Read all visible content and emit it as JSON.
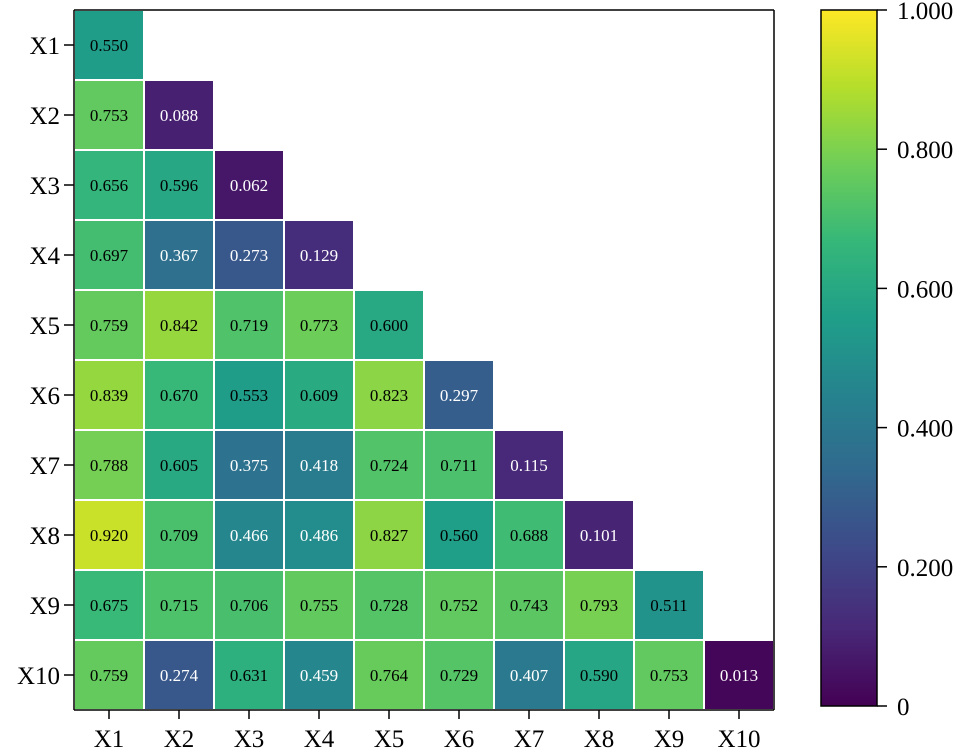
{
  "chart_data": {
    "type": "heatmap",
    "title": "",
    "xlabel": "",
    "ylabel": "",
    "x_categories": [
      "X1",
      "X2",
      "X3",
      "X4",
      "X5",
      "X6",
      "X7",
      "X8",
      "X9",
      "X10"
    ],
    "y_categories": [
      "X1",
      "X2",
      "X3",
      "X4",
      "X5",
      "X6",
      "X7",
      "X8",
      "X9",
      "X10"
    ],
    "cells": [
      [
        "0.550"
      ],
      [
        "0.753",
        "0.088"
      ],
      [
        "0.656",
        "0.596",
        "0.062"
      ],
      [
        "0.697",
        "0.367",
        "0.273",
        "0.129"
      ],
      [
        "0.759",
        "0.842",
        "0.719",
        "0.773",
        "0.600"
      ],
      [
        "0.839",
        "0.670",
        "0.553",
        "0.609",
        "0.823",
        "0.297"
      ],
      [
        "0.788",
        "0.605",
        "0.375",
        "0.418",
        "0.724",
        "0.711",
        "0.115"
      ],
      [
        "0.920",
        "0.709",
        "0.466",
        "0.486",
        "0.827",
        "0.560",
        "0.688",
        "0.101"
      ],
      [
        "0.675",
        "0.715",
        "0.706",
        "0.755",
        "0.728",
        "0.752",
        "0.743",
        "0.793",
        "0.511"
      ],
      [
        "0.759",
        "0.274",
        "0.631",
        "0.459",
        "0.764",
        "0.729",
        "0.407",
        "0.590",
        "0.753",
        "0.013"
      ]
    ],
    "value_range": [
      0,
      1
    ],
    "colormap": "viridis",
    "colorbar": {
      "ticks": [
        0,
        0.2,
        0.4,
        0.6,
        0.8,
        1.0
      ],
      "tick_labels": [
        "0",
        "0.200",
        "0.400",
        "0.600",
        "0.800",
        "1.000"
      ]
    }
  },
  "colors": {
    "viridis_stops": [
      "#440154",
      "#482878",
      "#3e4989",
      "#31688e",
      "#26828e",
      "#1f9e89",
      "#35b779",
      "#6ece58",
      "#b5de2b",
      "#fde725"
    ],
    "grid_line": "#ffffff",
    "axis": "#000000",
    "label_dark": "#000000",
    "label_light": "#ffffff"
  }
}
